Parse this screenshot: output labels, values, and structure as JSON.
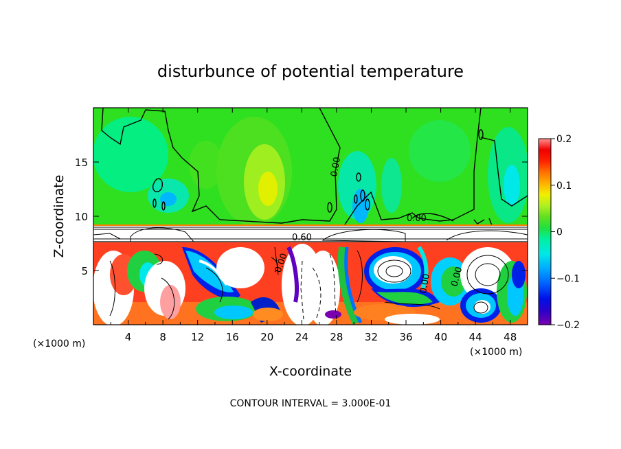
{
  "chart_data": {
    "type": "heatmap",
    "title": "disturbunce of potential temperature",
    "xlabel": "X-coordinate",
    "ylabel": "Z-coordinate",
    "x_unit": "(×1000 m)",
    "x_unit_right": "(×1000 m)",
    "xlim": [
      0,
      50
    ],
    "ylim": [
      0,
      20
    ],
    "x_ticks": [
      4,
      8,
      12,
      16,
      20,
      24,
      28,
      32,
      36,
      40,
      44,
      48
    ],
    "y_ticks": [
      5,
      10,
      15
    ],
    "colorbar": {
      "range": [
        -0.2,
        0.2
      ],
      "tick_labels": [
        "0.2",
        "0.1",
        "0",
        "−0.1",
        "−0.2"
      ],
      "tick_values": [
        0.2,
        0.1,
        0,
        -0.1,
        -0.2
      ],
      "colors": [
        "#7a00b0",
        "#2f00c8",
        "#0010e8",
        "#0060ff",
        "#00a8ff",
        "#00e8e8",
        "#00f0a0",
        "#20e040",
        "#60e020",
        "#b0f020",
        "#f0f000",
        "#ffb000",
        "#ff7000",
        "#ff2000",
        "#f00000",
        "#ff9090"
      ]
    },
    "contour_labels": [
      "0.00",
      "0.00",
      "0.60",
      "0.00",
      "0.00",
      "0.00"
    ],
    "contour_interval_text": "CONTOUR INTERVAL = 3.000E-01"
  }
}
